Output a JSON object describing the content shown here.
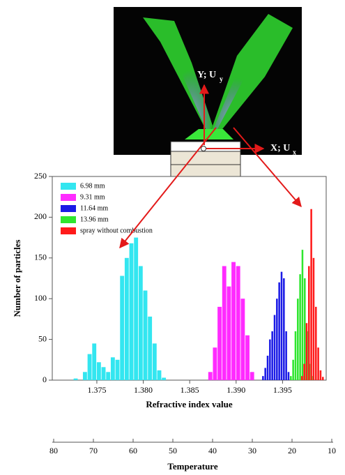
{
  "image": {
    "y_label": "Y; U",
    "y_label_sub": "y",
    "x_label": "X; U",
    "x_label_sub": "x"
  },
  "chart_data": [
    {
      "type": "histogram",
      "xlabel": "Refractive index value",
      "ylabel": "Number of particles",
      "xlim": [
        1.3702,
        1.3997
      ],
      "ylim": [
        0,
        250
      ],
      "xticks": [
        1.375,
        {
          "value": 1.38,
          "label": "1.380"
        },
        1.385,
        {
          "value": 1.39,
          "label": "1.390"
        },
        1.395
      ],
      "yticks": [
        0,
        50,
        100,
        150,
        200,
        250
      ],
      "legend": "upper left",
      "series": [
        {
          "name": "6.98 mm",
          "color": "#33e6f0",
          "bins": [
            1.3725,
            1.373,
            1.3735,
            1.374,
            1.3745,
            1.375,
            1.3755,
            1.376,
            1.3765,
            1.377,
            1.3775,
            1.378,
            1.3785,
            1.379,
            1.3795,
            1.38,
            1.3805,
            1.381,
            1.3815,
            1.382,
            1.3825
          ],
          "values": [
            2,
            0,
            10,
            32,
            45,
            22,
            16,
            10,
            28,
            25,
            128,
            150,
            168,
            175,
            140,
            110,
            78,
            45,
            12,
            3
          ]
        },
        {
          "name": "9.31 mm",
          "color": "#ff2bff",
          "bins": [
            1.387,
            1.3875,
            1.388,
            1.3885,
            1.389,
            1.3895,
            1.39,
            1.3905,
            1.391,
            1.3915,
            1.392
          ],
          "values": [
            10,
            40,
            90,
            140,
            115,
            145,
            140,
            100,
            55,
            10
          ]
        },
        {
          "name": "11.64 mm",
          "color": "#1a1ae6",
          "bins": [
            1.3928,
            1.39305,
            1.3933,
            1.39355,
            1.3938,
            1.39405,
            1.3943,
            1.39455,
            1.3948,
            1.39505,
            1.3953,
            1.39555,
            1.3958
          ],
          "values": [
            5,
            15,
            30,
            50,
            60,
            80,
            100,
            120,
            133,
            125,
            60,
            10
          ]
        },
        {
          "name": "13.96 mm",
          "color": "#2ee62e",
          "bins": [
            1.3958,
            1.39605,
            1.3963,
            1.39655,
            1.3968,
            1.39705,
            1.3973,
            1.39755,
            1.3978,
            1.39805,
            1.3983
          ],
          "values": [
            5,
            25,
            60,
            100,
            130,
            160,
            125,
            60,
            20,
            5
          ]
        },
        {
          "name": "spray without combustion",
          "color": "#ff1a1a",
          "bins": [
            1.397,
            1.39725,
            1.3975,
            1.39775,
            1.398,
            1.39825,
            1.3985,
            1.39875,
            1.399,
            1.39925,
            1.3995
          ],
          "values": [
            5,
            20,
            70,
            140,
            210,
            150,
            90,
            40,
            12,
            4
          ]
        }
      ]
    },
    {
      "type": "axis",
      "xlabel": "Temperature",
      "xlim": [
        80,
        10
      ],
      "xticks": [
        80,
        70,
        60,
        50,
        40,
        30,
        20,
        10
      ]
    }
  ]
}
